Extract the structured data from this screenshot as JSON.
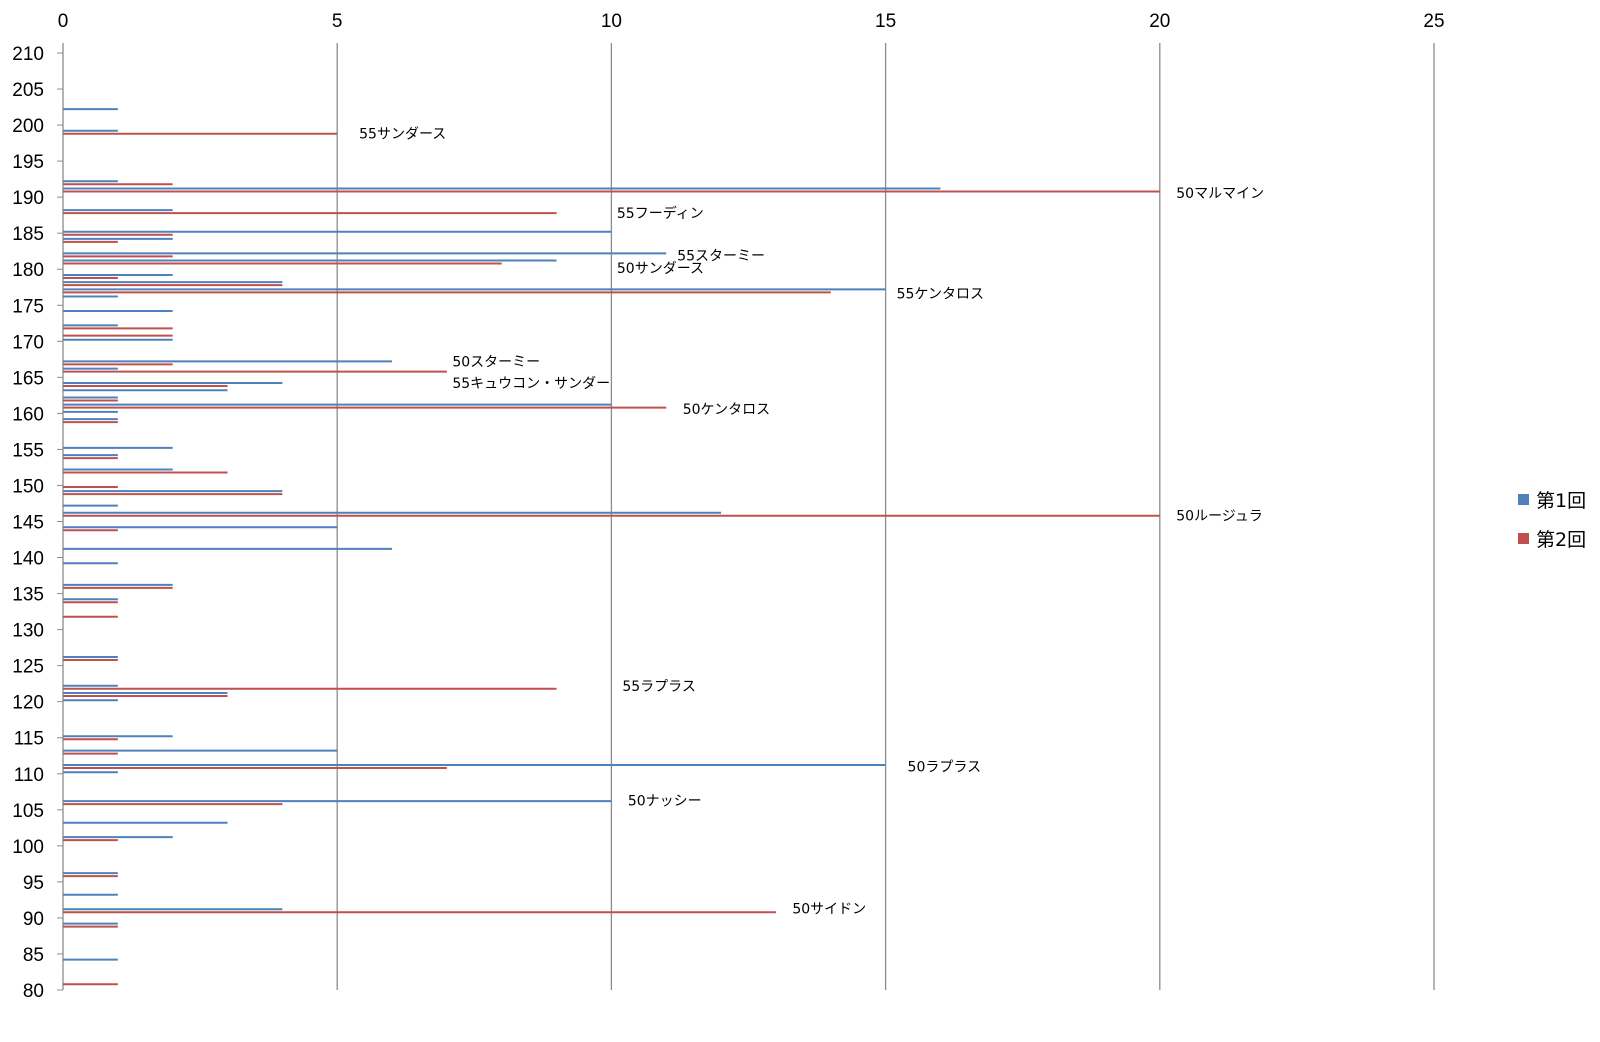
{
  "chart_data": {
    "type": "bar",
    "orientation": "horizontal",
    "title": "",
    "xlabel": "",
    "ylabel": "",
    "xlim": [
      0,
      25
    ],
    "x_ticks": [
      0,
      5,
      10,
      15,
      20,
      25
    ],
    "x_axis_position": "top",
    "ylim": [
      80,
      210
    ],
    "y_ticks": [
      210,
      205,
      200,
      195,
      190,
      185,
      180,
      175,
      170,
      165,
      160,
      155,
      150,
      145,
      140,
      135,
      130,
      125,
      120,
      115,
      110,
      105,
      100,
      95,
      90,
      85,
      80
    ],
    "grid": "vertical",
    "legend_position": "right",
    "colors": {
      "first": "#4F81BD",
      "second": "#C0504D"
    },
    "series": [
      {
        "name": "第1回",
        "points": [
          [
            202,
            1
          ],
          [
            199,
            1
          ],
          [
            192,
            1
          ],
          [
            191,
            16
          ],
          [
            188,
            2
          ],
          [
            185,
            10
          ],
          [
            184,
            2
          ],
          [
            182,
            11
          ],
          [
            181,
            9
          ],
          [
            179,
            2
          ],
          [
            178,
            4
          ],
          [
            177,
            15
          ],
          [
            176,
            1
          ],
          [
            174,
            2
          ],
          [
            172,
            1
          ],
          [
            170,
            2
          ],
          [
            167,
            6
          ],
          [
            166,
            1
          ],
          [
            164,
            4
          ],
          [
            163,
            3
          ],
          [
            162,
            1
          ],
          [
            161,
            10
          ],
          [
            160,
            1
          ],
          [
            159,
            1
          ],
          [
            155,
            2
          ],
          [
            154,
            1
          ],
          [
            152,
            2
          ],
          [
            149,
            4
          ],
          [
            147,
            1
          ],
          [
            146,
            12
          ],
          [
            144,
            5
          ],
          [
            141,
            6
          ],
          [
            139,
            1
          ],
          [
            136,
            2
          ],
          [
            134,
            1
          ],
          [
            126,
            1
          ],
          [
            122,
            1
          ],
          [
            121,
            3
          ],
          [
            120,
            1
          ],
          [
            115,
            2
          ],
          [
            113,
            5
          ],
          [
            111,
            15
          ],
          [
            110,
            1
          ],
          [
            106,
            10
          ],
          [
            103,
            3
          ],
          [
            101,
            2
          ],
          [
            96,
            1
          ],
          [
            93,
            1
          ],
          [
            91,
            4
          ],
          [
            89,
            1
          ],
          [
            84,
            1
          ]
        ]
      },
      {
        "name": "第2回",
        "points": [
          [
            199,
            5
          ],
          [
            192,
            2
          ],
          [
            191,
            20
          ],
          [
            188,
            9
          ],
          [
            185,
            2
          ],
          [
            184,
            1
          ],
          [
            182,
            2
          ],
          [
            181,
            8
          ],
          [
            179,
            1
          ],
          [
            178,
            4
          ],
          [
            177,
            14
          ],
          [
            172,
            2
          ],
          [
            171,
            2
          ],
          [
            167,
            2
          ],
          [
            166,
            7
          ],
          [
            164,
            3
          ],
          [
            162,
            1
          ],
          [
            161,
            11
          ],
          [
            159,
            1
          ],
          [
            154,
            1
          ],
          [
            152,
            3
          ],
          [
            150,
            1
          ],
          [
            149,
            4
          ],
          [
            146,
            20
          ],
          [
            144,
            1
          ],
          [
            136,
            2
          ],
          [
            134,
            1
          ],
          [
            132,
            1
          ],
          [
            126,
            1
          ],
          [
            122,
            9
          ],
          [
            121,
            3
          ],
          [
            115,
            1
          ],
          [
            113,
            1
          ],
          [
            111,
            7
          ],
          [
            106,
            4
          ],
          [
            101,
            1
          ],
          [
            96,
            1
          ],
          [
            91,
            13
          ],
          [
            89,
            1
          ],
          [
            81,
            1
          ]
        ]
      }
    ],
    "annotations": [
      {
        "text": "55サンダース",
        "x": 5.4,
        "y": 198.8
      },
      {
        "text": "50マルマイン",
        "x": 20.3,
        "y": 190.6
      },
      {
        "text": "55フーディン",
        "x": 10.1,
        "y": 187.8
      },
      {
        "text": "55スターミー",
        "x": 11.2,
        "y": 181.9
      },
      {
        "text": "50サンダース",
        "x": 10.1,
        "y": 180.2
      },
      {
        "text": "55ケンタロス",
        "x": 15.2,
        "y": 176.6
      },
      {
        "text": "50スターミー",
        "x": 7.1,
        "y": 167.2
      },
      {
        "text": "55キュウコン・サンダー",
        "x": 7.1,
        "y": 164.2
      },
      {
        "text": "50ケンタロス",
        "x": 11.3,
        "y": 160.6
      },
      {
        "text": "50ルージュラ",
        "x": 20.3,
        "y": 145.8
      },
      {
        "text": "55ラプラス",
        "x": 10.2,
        "y": 122.2
      },
      {
        "text": "50ラプラス",
        "x": 15.4,
        "y": 111.0
      },
      {
        "text": "50ナッシー",
        "x": 10.3,
        "y": 106.3
      },
      {
        "text": "50サイドン",
        "x": 13.3,
        "y": 91.3
      }
    ]
  }
}
